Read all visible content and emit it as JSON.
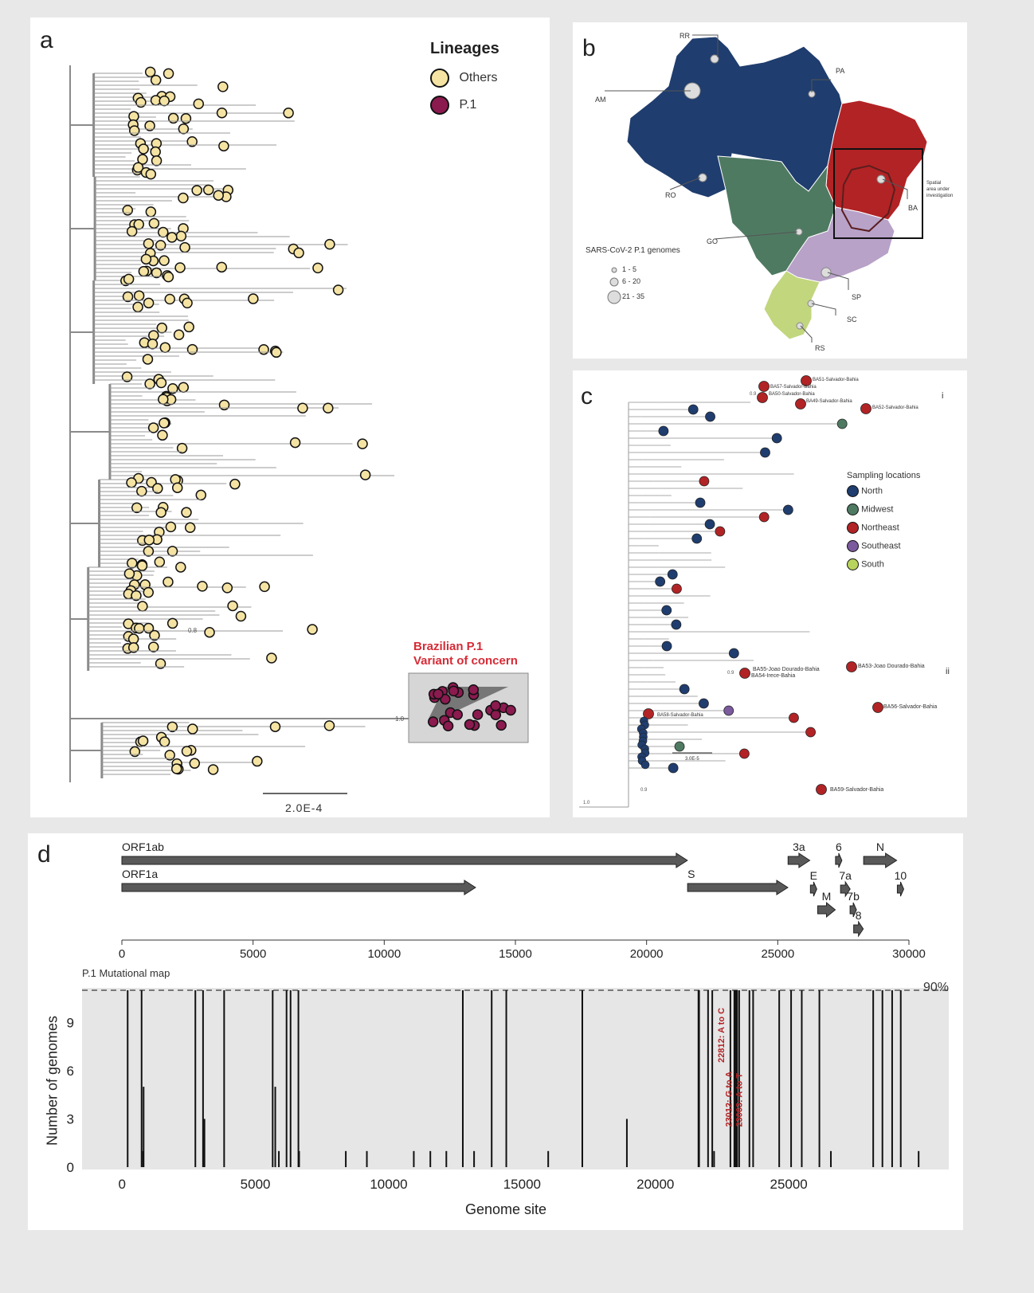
{
  "panel_a": {
    "letter": "a",
    "legend": {
      "title": "Lineages",
      "items": [
        {
          "label": "Others",
          "color": "#f5e3a3"
        },
        {
          "label": "P.1",
          "color": "#8b1a4f"
        }
      ]
    },
    "voc_label_line1": "Brazilian P.1",
    "voc_label_line2": "Variant of concern",
    "voc_label_color": "#d62b36",
    "support_labels": [
      "0.8",
      "1.0"
    ],
    "scale_bar": "2.0E-4"
  },
  "panel_b": {
    "letter": "b",
    "state_labels": [
      "RR",
      "AM",
      "PA",
      "RO",
      "GO",
      "BA",
      "SP",
      "SC",
      "RS"
    ],
    "inset_caption": [
      "Spatial",
      "area under",
      "investigation"
    ],
    "size_legend": {
      "title": "SARS-CoV-2 P.1 genomes",
      "items": [
        "1 - 5",
        "6 - 20",
        "21 - 35"
      ]
    },
    "region_colors": {
      "North": "#1f3d6e",
      "Midwest": "#4f7a62",
      "Northeast": "#b22325",
      "Southeast": "#b8a2c8",
      "South": "#c2d67e"
    }
  },
  "panel_c": {
    "letter": "c",
    "legend": {
      "title": "Sampling locations",
      "items": [
        {
          "label": "North",
          "color": "#1f3d6e"
        },
        {
          "label": "Midwest",
          "color": "#4f7a62"
        },
        {
          "label": "Northeast",
          "color": "#b22325"
        },
        {
          "label": "Southeast",
          "color": "#7b5a9e"
        },
        {
          "label": "South",
          "color": "#b9d45c"
        }
      ]
    },
    "tip_labels": [
      "BA51-Salvador-Bahia",
      "BA57-Salvador-Bahia",
      "BA50-Salvador-Bahia",
      "BA49-Salvador-Bahia",
      "BA52-Salvador-Bahia",
      "BA55-Joao Dourado-Bahia",
      "BA54-Irece-Bahia",
      "BA53-Joao Dourado-Bahia",
      "BA56-Salvador-Bahia",
      "BA58-Salvador-Bahia",
      "BA59-Salvador-Bahia"
    ],
    "clade_labels": [
      "i",
      "ii"
    ],
    "support_labels": [
      "0.9",
      "0.9",
      "0.9",
      "1.0"
    ],
    "scale_bar": "3.0E-5"
  },
  "panel_d": {
    "letter": "d",
    "genes": [
      {
        "name": "ORF1ab",
        "start": 0,
        "end": 21555
      },
      {
        "name": "ORF1a",
        "start": 0,
        "end": 13480
      },
      {
        "name": "S",
        "start": 21563,
        "end": 25384
      },
      {
        "name": "3a",
        "start": 25393,
        "end": 26220
      },
      {
        "name": "E",
        "start": 26245,
        "end": 26472
      },
      {
        "name": "M",
        "start": 26523,
        "end": 27191
      },
      {
        "name": "6",
        "start": 27202,
        "end": 27387
      },
      {
        "name": "7a",
        "start": 27394,
        "end": 27759
      },
      {
        "name": "7b",
        "start": 27756,
        "end": 27887
      },
      {
        "name": "8",
        "start": 27894,
        "end": 28259
      },
      {
        "name": "N",
        "start": 28274,
        "end": 29533
      },
      {
        "name": "10",
        "start": 29558,
        "end": 29674
      }
    ],
    "genome_axis_ticks": [
      "0",
      "5000",
      "10000",
      "15000",
      "20000",
      "25000",
      "30000"
    ],
    "map_title": "P.1 Mutational map",
    "threshold_label": "90%",
    "ylabel": "Number of genomes",
    "xlabel": "Genome site",
    "annotations": [
      "22812: A to C",
      "23012: G to A",
      "23063: A to T"
    ],
    "annotation_color": "#b22325"
  },
  "chart_data": {
    "type": "bar",
    "title": "P.1 Mutational map",
    "xlabel": "Genome site",
    "ylabel": "Number of genomes",
    "xlim": [
      -1500,
      31000
    ],
    "ylim": [
      0,
      11
    ],
    "yticks": [
      0,
      3,
      6,
      9
    ],
    "xticks": [
      0,
      5000,
      10000,
      15000,
      20000,
      25000
    ],
    "threshold": {
      "label": "90%",
      "value": 11
    },
    "x": [
      210,
      733,
      790,
      808,
      2749,
      3037,
      3090,
      3828,
      5648,
      5745,
      5880,
      6168,
      6319,
      6613,
      6640,
      8390,
      9180,
      10940,
      11560,
      12160,
      12778,
      13200,
      13860,
      14408,
      15980,
      17259,
      18930,
      21614,
      21621,
      21638,
      21974,
      22132,
      22200,
      22812,
      22960,
      23012,
      23050,
      23063,
      23140,
      23525,
      23664,
      24642,
      25088,
      25488,
      26149,
      26580,
      28167,
      28512,
      28877,
      29200,
      29870
    ],
    "values": [
      11,
      11,
      1,
      5,
      11,
      11,
      3,
      11,
      11,
      5,
      1,
      11,
      11,
      11,
      1,
      1,
      1,
      1,
      1,
      1,
      11,
      1,
      11,
      11,
      1,
      11,
      3,
      11,
      11,
      11,
      11,
      11,
      1,
      11,
      11,
      11,
      11,
      11,
      11,
      11,
      11,
      11,
      11,
      11,
      11,
      1,
      11,
      11,
      11,
      11,
      1
    ]
  }
}
